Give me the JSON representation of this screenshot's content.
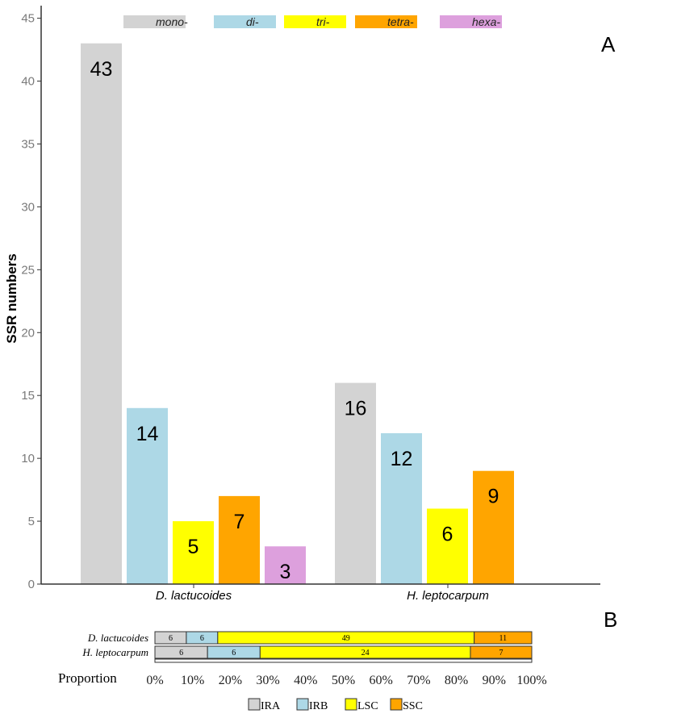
{
  "chart_data": [
    {
      "type": "bar",
      "panel_label": "A",
      "ylabel": "SSR numbers",
      "ylim": [
        0,
        46
      ],
      "yticks": [
        0,
        5,
        10,
        15,
        20,
        25,
        30,
        35,
        40,
        45
      ],
      "grid": false,
      "legend_position": "top",
      "categories": [
        "D. lactucoides",
        "H. leptocarpum"
      ],
      "series": [
        {
          "name": "mono-",
          "color": "#d3d3d3",
          "values": [
            43,
            16
          ]
        },
        {
          "name": "di-",
          "color": "#add8e6",
          "values": [
            14,
            12
          ]
        },
        {
          "name": "tri-",
          "color": "#ffff00",
          "values": [
            5,
            6
          ]
        },
        {
          "name": "tetra-",
          "color": "#ffa500",
          "values": [
            7,
            9
          ]
        },
        {
          "name": "hexa-",
          "color": "#dda0dd",
          "values": [
            3,
            null
          ]
        }
      ]
    },
    {
      "type": "bar",
      "orientation": "horizontal",
      "stacked": true,
      "normalized": true,
      "panel_label": "B",
      "xlabel": "Proportion",
      "xticks": [
        "0%",
        "10%",
        "20%",
        "30%",
        "40%",
        "50%",
        "60%",
        "70%",
        "80%",
        "90%",
        "100%"
      ],
      "legend_position": "bottom",
      "categories": [
        "D. lactucoides",
        "H. leptocarpum"
      ],
      "series": [
        {
          "name": "IRA",
          "color": "#d3d3d3",
          "values": [
            6,
            6
          ]
        },
        {
          "name": "IRB",
          "color": "#add8e6",
          "values": [
            6,
            6
          ]
        },
        {
          "name": "LSC",
          "color": "#ffff00",
          "values": [
            49,
            24
          ]
        },
        {
          "name": "SSC",
          "color": "#ffa500",
          "values": [
            11,
            7
          ]
        }
      ]
    }
  ]
}
